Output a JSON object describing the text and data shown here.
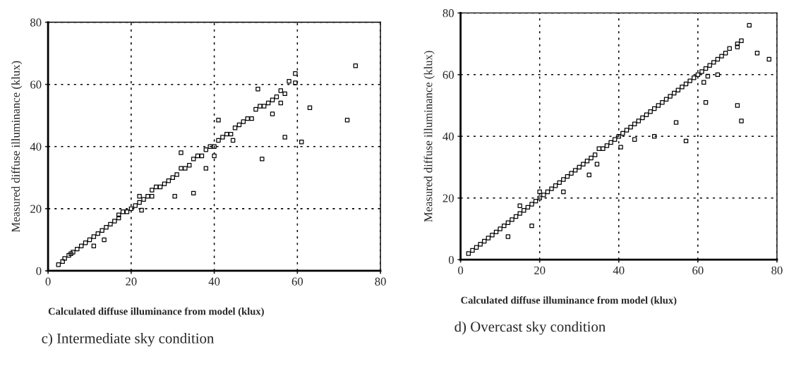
{
  "chart_data": [
    {
      "type": "scatter",
      "xlabel": "Calculated diffuse illuminance from model (klux)",
      "ylabel": "Measured diffuse illuminance (klux)",
      "annotations": [
        "c) Intermediate sky condition"
      ],
      "xlim": [
        0,
        80
      ],
      "ylim": [
        0,
        80
      ],
      "xticks": [
        0,
        20,
        40,
        60,
        80
      ],
      "yticks": [
        0,
        20,
        40,
        60,
        80
      ],
      "grid": true,
      "marker": "square",
      "series": [
        {
          "color": "#000000",
          "x": [
            2.5,
            3.5,
            4,
            5,
            5.5,
            6,
            7,
            8,
            9,
            10,
            11,
            11,
            12,
            13,
            13.5,
            14,
            15,
            16,
            17,
            17,
            18,
            19,
            20,
            21,
            22,
            22,
            22.5,
            23,
            24,
            25,
            25,
            26,
            27,
            28,
            29,
            30,
            30.5,
            31,
            32,
            32,
            33,
            34,
            35,
            35,
            36,
            37,
            38,
            38,
            39,
            40,
            40,
            41,
            41,
            42,
            43,
            44,
            44.5,
            45,
            46,
            47,
            48,
            49,
            50,
            50.5,
            51,
            51.5,
            52,
            53,
            54,
            54,
            55,
            56,
            56,
            57,
            57,
            58,
            59.5,
            59.5,
            61,
            63,
            72,
            74
          ],
          "values": [
            2,
            3,
            4,
            5,
            5.5,
            6,
            7,
            8,
            9,
            10,
            11,
            8,
            12,
            13,
            10,
            14,
            15,
            16,
            17,
            18,
            19,
            19,
            20,
            21,
            22,
            24,
            19.5,
            23,
            24,
            26,
            24,
            27,
            27,
            28,
            29,
            30,
            24,
            31,
            33,
            38,
            33,
            34,
            36,
            25,
            37,
            37,
            39,
            33,
            40,
            40,
            37,
            42,
            48.5,
            43,
            44,
            44,
            42,
            46,
            47,
            48,
            49,
            49,
            52,
            58.5,
            53,
            36,
            53,
            54,
            55,
            50.5,
            56,
            58,
            54,
            57,
            43,
            61,
            63.5,
            60.5,
            41.5,
            52.5,
            48.5,
            66
          ]
        }
      ]
    },
    {
      "type": "scatter",
      "xlabel": "Calculated diffuse illuminance from model (klux)",
      "ylabel": "Measured diffuse illuminance (klux)",
      "annotations": [
        "d) Overcast sky condition"
      ],
      "xlim": [
        0,
        80
      ],
      "ylim": [
        0,
        80
      ],
      "xticks": [
        0,
        20,
        40,
        60,
        80
      ],
      "yticks": [
        0,
        20,
        40,
        60,
        80
      ],
      "grid": true,
      "marker": "square",
      "series": [
        {
          "color": "#000000",
          "x": [
            2,
            3,
            4,
            5,
            6,
            7,
            8,
            9,
            10,
            11,
            12,
            12,
            13,
            14,
            15,
            15,
            16,
            17,
            18,
            18,
            19,
            20,
            20,
            21,
            22,
            23,
            24,
            25,
            26,
            26,
            27,
            28,
            29,
            30,
            31,
            32,
            32.5,
            33,
            34,
            34.5,
            35,
            36,
            37,
            38,
            39,
            40,
            40.5,
            41,
            42,
            43,
            44,
            44,
            45,
            46,
            47,
            48,
            49,
            49,
            50,
            51,
            52,
            53,
            54,
            54.5,
            55,
            56,
            57,
            57,
            58,
            59,
            60,
            61,
            61.5,
            62,
            62,
            62.5,
            63,
            64,
            65,
            65,
            66,
            67,
            68,
            70,
            70,
            70,
            71,
            71,
            73,
            75,
            78
          ],
          "values": [
            2,
            3,
            4,
            5,
            6,
            7,
            8,
            9,
            10,
            11,
            12,
            7.5,
            13,
            14,
            15,
            17.5,
            16,
            17,
            18,
            11,
            19,
            20,
            22,
            21,
            22,
            23,
            24,
            25,
            26,
            22,
            27,
            28,
            29,
            30,
            31,
            32,
            27.5,
            33,
            34,
            31,
            36,
            36,
            37,
            38,
            39,
            40,
            36.5,
            41,
            42,
            43,
            44,
            39,
            45,
            46,
            47,
            48,
            49,
            40,
            50,
            51,
            52,
            53,
            54,
            44.5,
            55,
            56,
            57,
            38.5,
            58,
            59,
            60,
            61,
            57.5,
            62,
            51,
            59.5,
            63,
            64,
            65,
            60,
            66,
            67,
            68.5,
            69,
            50,
            70,
            71,
            45,
            76,
            67,
            65
          ]
        }
      ]
    }
  ]
}
